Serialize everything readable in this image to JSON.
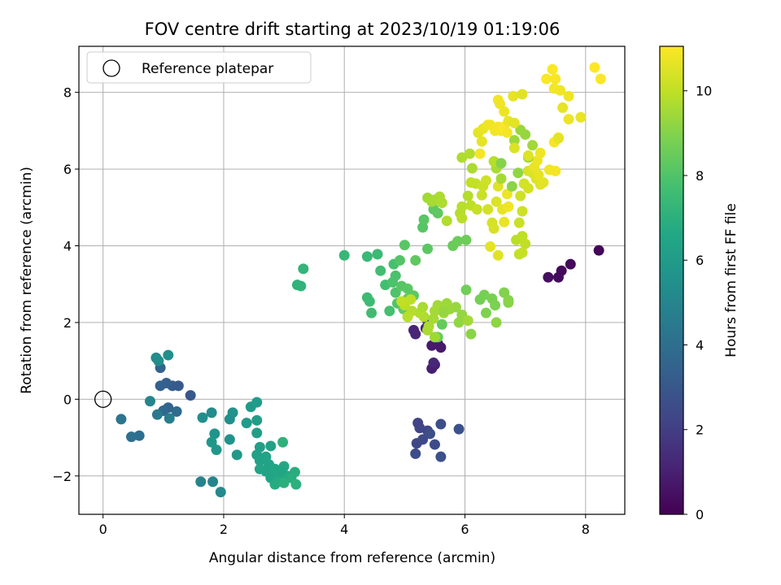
{
  "chart_data": {
    "type": "scatter",
    "title": "FOV centre drift starting at 2023/10/19 01:19:06",
    "xlabel": "Angular distance from reference (arcmin)",
    "ylabel": "Rotation from reference (arcmin)",
    "xlim": [
      -0.4,
      8.65
    ],
    "ylim": [
      -3.0,
      9.2
    ],
    "xticks": [
      0,
      2,
      4,
      6,
      8
    ],
    "yticks": [
      -2,
      0,
      2,
      4,
      6,
      8
    ],
    "xtick_labels": [
      "0",
      "2",
      "4",
      "6",
      "8"
    ],
    "ytick_labels": [
      "−2",
      "0",
      "2",
      "4",
      "6",
      "8"
    ],
    "grid": true,
    "legend": {
      "position": "top-left",
      "entries": [
        {
          "label": "Reference platepar",
          "marker": "open-circle"
        }
      ]
    },
    "reference_point": {
      "x": 0,
      "y": 0
    },
    "colorbar": {
      "label": "Hours from first FF file",
      "range": [
        0,
        11.05
      ],
      "ticks": [
        0,
        2,
        4,
        6,
        8,
        10
      ],
      "tick_labels": [
        "0",
        "2",
        "4",
        "6",
        "8",
        "10"
      ],
      "colormap": "viridis"
    },
    "points": [
      {
        "x": 8.22,
        "y": 3.88,
        "c": 0.1
      },
      {
        "x": 7.75,
        "y": 3.52,
        "c": 0.2
      },
      {
        "x": 7.6,
        "y": 3.35,
        "c": 0.25
      },
      {
        "x": 7.55,
        "y": 3.18,
        "c": 0.3
      },
      {
        "x": 7.38,
        "y": 3.18,
        "c": 0.4
      },
      {
        "x": 5.52,
        "y": 1.55,
        "c": 0.6
      },
      {
        "x": 5.55,
        "y": 1.45,
        "c": 0.7
      },
      {
        "x": 5.6,
        "y": 1.35,
        "c": 0.75
      },
      {
        "x": 5.45,
        "y": 1.4,
        "c": 0.8
      },
      {
        "x": 5.5,
        "y": 0.9,
        "c": 0.9
      },
      {
        "x": 5.45,
        "y": 0.8,
        "c": 0.95
      },
      {
        "x": 5.38,
        "y": 2.05,
        "c": 1.0
      },
      {
        "x": 5.35,
        "y": 1.85,
        "c": 1.05
      },
      {
        "x": 5.15,
        "y": 1.8,
        "c": 1.1
      },
      {
        "x": 5.18,
        "y": 1.7,
        "c": 1.15
      },
      {
        "x": 5.48,
        "y": 0.95,
        "c": 1.2
      },
      {
        "x": 5.22,
        "y": -0.62,
        "c": 2.2
      },
      {
        "x": 5.25,
        "y": -0.75,
        "c": 2.25
      },
      {
        "x": 5.38,
        "y": -0.82,
        "c": 2.3
      },
      {
        "x": 5.2,
        "y": -1.15,
        "c": 2.35
      },
      {
        "x": 5.3,
        "y": -1.05,
        "c": 2.4
      },
      {
        "x": 5.5,
        "y": -1.18,
        "c": 2.5
      },
      {
        "x": 5.18,
        "y": -1.42,
        "c": 2.55
      },
      {
        "x": 5.42,
        "y": -0.9,
        "c": 2.6
      },
      {
        "x": 5.6,
        "y": -0.65,
        "c": 2.65
      },
      {
        "x": 5.6,
        "y": -1.5,
        "c": 2.7
      },
      {
        "x": 5.9,
        "y": -0.78,
        "c": 2.75
      },
      {
        "x": 1.45,
        "y": 0.1,
        "c": 3.0
      },
      {
        "x": 1.25,
        "y": 0.35,
        "c": 3.1
      },
      {
        "x": 1.15,
        "y": 0.35,
        "c": 3.2
      },
      {
        "x": 1.05,
        "y": 0.42,
        "c": 3.3
      },
      {
        "x": 0.95,
        "y": 0.35,
        "c": 3.4
      },
      {
        "x": 0.95,
        "y": 0.82,
        "c": 3.5
      },
      {
        "x": 1.08,
        "y": -0.22,
        "c": 3.6
      },
      {
        "x": 1.0,
        "y": -0.3,
        "c": 3.7
      },
      {
        "x": 1.22,
        "y": -0.32,
        "c": 3.8
      },
      {
        "x": 0.6,
        "y": -0.95,
        "c": 4.0
      },
      {
        "x": 0.47,
        "y": -0.98,
        "c": 4.1
      },
      {
        "x": 0.3,
        "y": -0.52,
        "c": 4.3
      },
      {
        "x": 0.9,
        "y": -0.4,
        "c": 4.5
      },
      {
        "x": 1.1,
        "y": -0.5,
        "c": 4.7
      },
      {
        "x": 0.78,
        "y": -0.05,
        "c": 5.0
      },
      {
        "x": 0.88,
        "y": 1.08,
        "c": 5.3
      },
      {
        "x": 0.92,
        "y": 1.0,
        "c": 5.4
      },
      {
        "x": 1.08,
        "y": 1.15,
        "c": 5.5
      },
      {
        "x": 1.62,
        "y": -2.15,
        "c": 4.9
      },
      {
        "x": 1.82,
        "y": -2.15,
        "c": 5.0
      },
      {
        "x": 1.95,
        "y": -2.42,
        "c": 5.2
      },
      {
        "x": 1.8,
        "y": -0.35,
        "c": 5.3
      },
      {
        "x": 1.65,
        "y": -0.48,
        "c": 5.4
      },
      {
        "x": 2.1,
        "y": -0.52,
        "c": 5.5
      },
      {
        "x": 2.15,
        "y": -0.35,
        "c": 5.55
      },
      {
        "x": 2.1,
        "y": -1.05,
        "c": 5.6
      },
      {
        "x": 1.85,
        "y": -0.9,
        "c": 5.7
      },
      {
        "x": 1.8,
        "y": -1.12,
        "c": 5.8
      },
      {
        "x": 1.88,
        "y": -1.32,
        "c": 5.85
      },
      {
        "x": 2.22,
        "y": -1.45,
        "c": 5.9
      },
      {
        "x": 2.38,
        "y": -0.62,
        "c": 5.95
      },
      {
        "x": 2.45,
        "y": -0.2,
        "c": 6.0
      },
      {
        "x": 2.55,
        "y": -0.08,
        "c": 6.05
      },
      {
        "x": 2.55,
        "y": -0.55,
        "c": 6.1
      },
      {
        "x": 2.55,
        "y": -0.88,
        "c": 6.15
      },
      {
        "x": 2.6,
        "y": -1.25,
        "c": 6.2
      },
      {
        "x": 2.55,
        "y": -1.45,
        "c": 6.25
      },
      {
        "x": 2.6,
        "y": -1.6,
        "c": 6.3
      },
      {
        "x": 2.7,
        "y": -1.5,
        "c": 6.35
      },
      {
        "x": 2.75,
        "y": -1.7,
        "c": 6.4
      },
      {
        "x": 2.6,
        "y": -1.82,
        "c": 6.45
      },
      {
        "x": 2.78,
        "y": -2.05,
        "c": 6.5
      },
      {
        "x": 2.85,
        "y": -1.82,
        "c": 6.55
      },
      {
        "x": 2.9,
        "y": -1.95,
        "c": 6.6
      },
      {
        "x": 3.0,
        "y": -1.75,
        "c": 6.65
      },
      {
        "x": 3.05,
        "y": -2.0,
        "c": 6.7
      },
      {
        "x": 2.92,
        "y": -2.15,
        "c": 6.75
      },
      {
        "x": 2.85,
        "y": -2.22,
        "c": 6.8
      },
      {
        "x": 3.18,
        "y": -1.9,
        "c": 6.85
      },
      {
        "x": 3.12,
        "y": -2.05,
        "c": 6.9
      },
      {
        "x": 3.0,
        "y": -2.18,
        "c": 6.95
      },
      {
        "x": 3.2,
        "y": -2.22,
        "c": 7.0
      },
      {
        "x": 2.98,
        "y": -1.12,
        "c": 7.05
      },
      {
        "x": 2.78,
        "y": -1.22,
        "c": 6.3
      },
      {
        "x": 2.7,
        "y": -1.88,
        "c": 6.4
      },
      {
        "x": 2.95,
        "y": -1.85,
        "c": 6.5
      },
      {
        "x": 3.22,
        "y": 2.98,
        "c": 7.1
      },
      {
        "x": 3.28,
        "y": 2.95,
        "c": 7.15
      },
      {
        "x": 3.32,
        "y": 3.4,
        "c": 7.2
      },
      {
        "x": 4.0,
        "y": 3.75,
        "c": 7.3
      },
      {
        "x": 4.38,
        "y": 3.72,
        "c": 7.4
      },
      {
        "x": 4.55,
        "y": 3.78,
        "c": 7.45
      },
      {
        "x": 4.38,
        "y": 2.65,
        "c": 7.5
      },
      {
        "x": 4.42,
        "y": 2.55,
        "c": 7.55
      },
      {
        "x": 4.45,
        "y": 2.25,
        "c": 7.6
      },
      {
        "x": 4.6,
        "y": 3.35,
        "c": 7.65
      },
      {
        "x": 4.68,
        "y": 2.98,
        "c": 7.7
      },
      {
        "x": 4.75,
        "y": 2.3,
        "c": 7.75
      },
      {
        "x": 4.82,
        "y": 3.52,
        "c": 7.8
      },
      {
        "x": 4.85,
        "y": 3.22,
        "c": 7.85
      },
      {
        "x": 4.8,
        "y": 3.05,
        "c": 7.9
      },
      {
        "x": 4.85,
        "y": 2.78,
        "c": 7.95
      },
      {
        "x": 4.88,
        "y": 2.5,
        "c": 8.0
      },
      {
        "x": 4.92,
        "y": 3.62,
        "c": 8.05
      },
      {
        "x": 4.95,
        "y": 2.95,
        "c": 8.1
      },
      {
        "x": 5.0,
        "y": 4.02,
        "c": 8.15
      },
      {
        "x": 5.05,
        "y": 2.88,
        "c": 8.2
      },
      {
        "x": 5.15,
        "y": 2.7,
        "c": 8.25
      },
      {
        "x": 5.18,
        "y": 3.62,
        "c": 8.3
      },
      {
        "x": 5.05,
        "y": 2.62,
        "c": 8.35
      },
      {
        "x": 4.98,
        "y": 2.35,
        "c": 8.4
      },
      {
        "x": 5.3,
        "y": 4.48,
        "c": 8.1
      },
      {
        "x": 5.32,
        "y": 4.68,
        "c": 8.15
      },
      {
        "x": 5.38,
        "y": 3.92,
        "c": 8.2
      },
      {
        "x": 5.48,
        "y": 4.95,
        "c": 8.25
      },
      {
        "x": 5.55,
        "y": 4.85,
        "c": 8.3
      },
      {
        "x": 5.6,
        "y": 2.35,
        "c": 8.35
      },
      {
        "x": 5.62,
        "y": 1.95,
        "c": 8.4
      },
      {
        "x": 5.55,
        "y": 1.62,
        "c": 8.45
      },
      {
        "x": 5.8,
        "y": 4.0,
        "c": 8.5
      },
      {
        "x": 5.88,
        "y": 4.12,
        "c": 8.55
      },
      {
        "x": 6.02,
        "y": 4.15,
        "c": 8.6
      },
      {
        "x": 6.02,
        "y": 2.85,
        "c": 8.65
      },
      {
        "x": 6.25,
        "y": 2.6,
        "c": 8.7
      },
      {
        "x": 6.32,
        "y": 2.72,
        "c": 8.75
      },
      {
        "x": 6.45,
        "y": 2.62,
        "c": 8.8
      },
      {
        "x": 6.5,
        "y": 2.45,
        "c": 8.85
      },
      {
        "x": 6.35,
        "y": 2.25,
        "c": 8.9
      },
      {
        "x": 6.65,
        "y": 2.78,
        "c": 8.95
      },
      {
        "x": 6.72,
        "y": 2.58,
        "c": 9.0
      },
      {
        "x": 6.72,
        "y": 2.52,
        "c": 9.05
      },
      {
        "x": 6.1,
        "y": 1.7,
        "c": 9.1
      },
      {
        "x": 6.52,
        "y": 2.0,
        "c": 9.15
      },
      {
        "x": 5.9,
        "y": 2.0,
        "c": 9.2
      },
      {
        "x": 5.95,
        "y": 2.2,
        "c": 9.25
      },
      {
        "x": 5.85,
        "y": 2.4,
        "c": 9.3
      },
      {
        "x": 5.75,
        "y": 2.35,
        "c": 9.35
      },
      {
        "x": 5.7,
        "y": 2.5,
        "c": 9.4
      },
      {
        "x": 5.65,
        "y": 2.25,
        "c": 9.45
      },
      {
        "x": 5.55,
        "y": 2.45,
        "c": 9.5
      },
      {
        "x": 5.5,
        "y": 2.3,
        "c": 9.55
      },
      {
        "x": 5.4,
        "y": 1.9,
        "c": 9.6
      },
      {
        "x": 5.38,
        "y": 1.8,
        "c": 9.65
      },
      {
        "x": 5.32,
        "y": 2.15,
        "c": 9.7
      },
      {
        "x": 5.25,
        "y": 2.25,
        "c": 9.75
      },
      {
        "x": 5.12,
        "y": 2.3,
        "c": 9.8
      },
      {
        "x": 5.05,
        "y": 2.15,
        "c": 9.85
      },
      {
        "x": 5.0,
        "y": 2.45,
        "c": 9.9
      },
      {
        "x": 5.1,
        "y": 2.6,
        "c": 9.95
      },
      {
        "x": 4.95,
        "y": 2.55,
        "c": 10.0
      },
      {
        "x": 5.3,
        "y": 2.4,
        "c": 9.6
      },
      {
        "x": 5.48,
        "y": 2.1,
        "c": 9.55
      },
      {
        "x": 6.05,
        "y": 2.05,
        "c": 9.5
      },
      {
        "x": 5.5,
        "y": 1.62,
        "c": 9.4
      },
      {
        "x": 5.65,
        "y": 2.3,
        "c": 9.3
      },
      {
        "x": 5.38,
        "y": 5.25,
        "c": 9.5
      },
      {
        "x": 5.45,
        "y": 5.15,
        "c": 9.55
      },
      {
        "x": 5.5,
        "y": 5.2,
        "c": 9.6
      },
      {
        "x": 5.58,
        "y": 5.28,
        "c": 9.65
      },
      {
        "x": 5.62,
        "y": 5.12,
        "c": 9.7
      },
      {
        "x": 5.7,
        "y": 4.65,
        "c": 9.75
      },
      {
        "x": 5.92,
        "y": 4.85,
        "c": 9.8
      },
      {
        "x": 5.95,
        "y": 5.02,
        "c": 9.85
      },
      {
        "x": 5.95,
        "y": 4.72,
        "c": 9.9
      },
      {
        "x": 6.1,
        "y": 5.05,
        "c": 9.95
      },
      {
        "x": 6.1,
        "y": 5.65,
        "c": 10.0
      },
      {
        "x": 6.18,
        "y": 5.62,
        "c": 10.05
      },
      {
        "x": 6.2,
        "y": 4.95,
        "c": 10.1
      },
      {
        "x": 6.28,
        "y": 5.32,
        "c": 10.15
      },
      {
        "x": 6.3,
        "y": 5.55,
        "c": 10.2
      },
      {
        "x": 6.35,
        "y": 5.7,
        "c": 10.25
      },
      {
        "x": 6.38,
        "y": 4.95,
        "c": 10.3
      },
      {
        "x": 6.45,
        "y": 4.6,
        "c": 10.35
      },
      {
        "x": 6.48,
        "y": 4.45,
        "c": 10.4
      },
      {
        "x": 6.52,
        "y": 5.15,
        "c": 10.45
      },
      {
        "x": 6.55,
        "y": 5.55,
        "c": 10.5
      },
      {
        "x": 6.55,
        "y": 3.75,
        "c": 10.55
      },
      {
        "x": 6.42,
        "y": 3.98,
        "c": 10.6
      },
      {
        "x": 6.62,
        "y": 4.95,
        "c": 10.65
      },
      {
        "x": 6.65,
        "y": 4.62,
        "c": 10.7
      },
      {
        "x": 6.7,
        "y": 5.35,
        "c": 10.75
      },
      {
        "x": 6.72,
        "y": 5.02,
        "c": 10.8
      },
      {
        "x": 6.6,
        "y": 5.75,
        "c": 9.55
      },
      {
        "x": 6.52,
        "y": 6.02,
        "c": 9.6
      },
      {
        "x": 6.12,
        "y": 6.02,
        "c": 9.65
      },
      {
        "x": 5.95,
        "y": 6.3,
        "c": 9.7
      },
      {
        "x": 6.08,
        "y": 6.4,
        "c": 9.75
      },
      {
        "x": 6.05,
        "y": 5.3,
        "c": 9.8
      },
      {
        "x": 6.48,
        "y": 6.2,
        "c": 9.85
      },
      {
        "x": 6.85,
        "y": 4.15,
        "c": 9.9
      },
      {
        "x": 6.95,
        "y": 4.25,
        "c": 9.95
      },
      {
        "x": 7.0,
        "y": 4.05,
        "c": 10.0
      },
      {
        "x": 6.9,
        "y": 3.78,
        "c": 10.05
      },
      {
        "x": 6.95,
        "y": 3.82,
        "c": 10.1
      },
      {
        "x": 6.9,
        "y": 4.6,
        "c": 10.15
      },
      {
        "x": 6.95,
        "y": 4.9,
        "c": 10.2
      },
      {
        "x": 6.92,
        "y": 5.3,
        "c": 10.25
      },
      {
        "x": 6.98,
        "y": 5.62,
        "c": 10.3
      },
      {
        "x": 7.05,
        "y": 5.5,
        "c": 10.35
      },
      {
        "x": 7.05,
        "y": 5.95,
        "c": 10.4
      },
      {
        "x": 7.12,
        "y": 5.9,
        "c": 10.45
      },
      {
        "x": 7.18,
        "y": 5.75,
        "c": 10.5
      },
      {
        "x": 7.25,
        "y": 5.6,
        "c": 10.55
      },
      {
        "x": 7.3,
        "y": 5.65,
        "c": 10.6
      },
      {
        "x": 7.22,
        "y": 5.85,
        "c": 10.65
      },
      {
        "x": 7.15,
        "y": 6.05,
        "c": 10.7
      },
      {
        "x": 7.2,
        "y": 6.22,
        "c": 10.75
      },
      {
        "x": 7.25,
        "y": 6.42,
        "c": 10.8
      },
      {
        "x": 7.4,
        "y": 5.98,
        "c": 10.85
      },
      {
        "x": 7.5,
        "y": 5.95,
        "c": 10.9
      },
      {
        "x": 7.48,
        "y": 6.7,
        "c": 10.95
      },
      {
        "x": 7.55,
        "y": 6.82,
        "c": 11.0
      },
      {
        "x": 7.12,
        "y": 6.62,
        "c": 9.5
      },
      {
        "x": 7.05,
        "y": 6.3,
        "c": 9.45
      },
      {
        "x": 6.82,
        "y": 6.75,
        "c": 9.4
      },
      {
        "x": 6.92,
        "y": 7.02,
        "c": 9.35
      },
      {
        "x": 7.0,
        "y": 6.9,
        "c": 9.3
      },
      {
        "x": 6.88,
        "y": 5.9,
        "c": 9.2
      },
      {
        "x": 6.78,
        "y": 5.55,
        "c": 9.1
      },
      {
        "x": 6.6,
        "y": 6.15,
        "c": 9.0
      },
      {
        "x": 6.22,
        "y": 6.95,
        "c": 10.6
      },
      {
        "x": 6.28,
        "y": 6.72,
        "c": 10.65
      },
      {
        "x": 6.3,
        "y": 7.05,
        "c": 10.7
      },
      {
        "x": 6.38,
        "y": 7.15,
        "c": 10.75
      },
      {
        "x": 6.42,
        "y": 7.15,
        "c": 10.8
      },
      {
        "x": 6.5,
        "y": 7.0,
        "c": 10.85
      },
      {
        "x": 6.55,
        "y": 7.1,
        "c": 10.9
      },
      {
        "x": 6.6,
        "y": 7.0,
        "c": 10.95
      },
      {
        "x": 6.65,
        "y": 7.1,
        "c": 11.0
      },
      {
        "x": 6.7,
        "y": 6.95,
        "c": 10.9
      },
      {
        "x": 6.55,
        "y": 7.8,
        "c": 10.85
      },
      {
        "x": 6.58,
        "y": 7.7,
        "c": 10.8
      },
      {
        "x": 6.65,
        "y": 7.5,
        "c": 10.75
      },
      {
        "x": 6.72,
        "y": 7.25,
        "c": 10.7
      },
      {
        "x": 6.8,
        "y": 7.9,
        "c": 10.65
      },
      {
        "x": 6.82,
        "y": 7.2,
        "c": 10.6
      },
      {
        "x": 6.95,
        "y": 7.95,
        "c": 10.55
      },
      {
        "x": 7.05,
        "y": 6.35,
        "c": 10.5
      },
      {
        "x": 6.82,
        "y": 6.55,
        "c": 10.45
      },
      {
        "x": 6.25,
        "y": 6.4,
        "c": 10.9
      },
      {
        "x": 7.35,
        "y": 8.35,
        "c": 11.0
      },
      {
        "x": 7.45,
        "y": 8.6,
        "c": 11.0
      },
      {
        "x": 7.5,
        "y": 8.35,
        "c": 10.95
      },
      {
        "x": 7.48,
        "y": 8.1,
        "c": 10.9
      },
      {
        "x": 7.58,
        "y": 8.05,
        "c": 10.85
      },
      {
        "x": 7.72,
        "y": 7.9,
        "c": 10.8
      },
      {
        "x": 7.72,
        "y": 7.3,
        "c": 10.75
      },
      {
        "x": 7.92,
        "y": 7.35,
        "c": 10.7
      },
      {
        "x": 7.62,
        "y": 7.6,
        "c": 10.65
      },
      {
        "x": 7.55,
        "y": 6.8,
        "c": 10.6
      },
      {
        "x": 8.15,
        "y": 8.65,
        "c": 11.05
      },
      {
        "x": 8.25,
        "y": 8.35,
        "c": 11.0
      }
    ]
  }
}
